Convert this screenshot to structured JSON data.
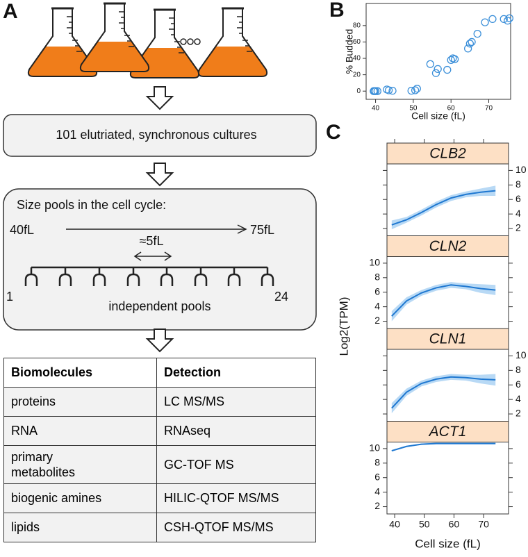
{
  "panel_a": {
    "label": "A",
    "step1": "101 elutriated, synchronous cultures",
    "pools_title": "Size pools in the cell cycle:",
    "size_start": "40fL",
    "size_end": "75fL",
    "pool_width": "≈5fL",
    "pool_first": "1",
    "pool_last": "24",
    "pools_caption": "independent pools",
    "table": {
      "header": [
        "Biomolecules",
        "Detection"
      ],
      "rows": [
        [
          "proteins",
          "LC MS/MS"
        ],
        [
          "RNA",
          "RNAseq"
        ],
        [
          "primary metabolites",
          "GC-TOF MS"
        ],
        [
          "biogenic amines",
          "HILIC-QTOF MS/MS"
        ],
        [
          "lipids",
          "CSH-QTOF MS/MS"
        ]
      ]
    }
  },
  "chart_data": [
    {
      "type": "scatter",
      "panel": "B",
      "xlabel": "Cell size (fL)",
      "ylabel": "% Budded",
      "color": "#3b8fd9",
      "x": [
        39.5,
        40,
        40.5,
        39.7,
        43,
        43.5,
        44.5,
        49.5,
        50.5,
        51,
        54.5,
        56,
        56.5,
        59,
        60,
        60.5,
        61,
        64.5,
        65,
        65.5,
        67,
        69,
        71,
        74,
        75,
        75.5
      ],
      "values": [
        0,
        0,
        0,
        0,
        2,
        1,
        0.5,
        0.5,
        1,
        3,
        33,
        22,
        27,
        26,
        38,
        40,
        39,
        52,
        58,
        60,
        70,
        84,
        88,
        88,
        86,
        89
      ],
      "xlim": [
        37.5,
        75.8
      ],
      "xticks": [
        40,
        50,
        60,
        70
      ],
      "ylim": [
        -10,
        107
      ],
      "yticks": [
        0,
        20,
        40,
        60,
        80
      ]
    },
    {
      "type": "line",
      "panel": "C",
      "xlabel": "Cell size (fL)",
      "ylabel": "Log2(TPM)",
      "color": "#1f78d1",
      "band_color": "#a6cff2",
      "x": [
        39,
        44,
        49,
        54,
        59,
        64,
        69,
        74
      ],
      "xlim": [
        37.4,
        78.4
      ],
      "xticks": [
        40,
        50,
        60,
        70
      ],
      "ylim": [
        1.0,
        10.9
      ],
      "yticks": [
        2,
        4,
        6,
        8,
        10
      ],
      "series": [
        {
          "name": "CLB2",
          "values": [
            2.5,
            3.2,
            4.2,
            5.3,
            6.2,
            6.7,
            7.0,
            7.2
          ],
          "lower": [
            1.9,
            2.8,
            3.8,
            4.9,
            5.8,
            6.3,
            6.5,
            6.5
          ],
          "upper": [
            3.1,
            3.6,
            4.6,
            5.7,
            6.6,
            7.1,
            7.5,
            7.9
          ]
        },
        {
          "name": "CLN2",
          "values": [
            2.7,
            4.8,
            5.9,
            6.6,
            7.0,
            6.8,
            6.5,
            6.3
          ],
          "lower": [
            2.0,
            4.3,
            5.5,
            6.2,
            6.6,
            6.4,
            5.9,
            5.6
          ],
          "upper": [
            3.4,
            5.3,
            6.3,
            7.0,
            7.4,
            7.2,
            7.1,
            7.0
          ]
        },
        {
          "name": "CLN1",
          "values": [
            2.8,
            5.0,
            6.2,
            6.8,
            7.1,
            7.0,
            6.8,
            6.7
          ],
          "lower": [
            2.1,
            4.5,
            5.8,
            6.4,
            6.7,
            6.6,
            6.2,
            5.9
          ],
          "upper": [
            3.5,
            5.5,
            6.6,
            7.2,
            7.5,
            7.4,
            7.4,
            7.5
          ]
        },
        {
          "name": "ACT1",
          "values": [
            9.7,
            10.3,
            10.6,
            10.7,
            10.7,
            10.7,
            10.7,
            10.7
          ],
          "lower": [
            9.6,
            10.2,
            10.5,
            10.6,
            10.6,
            10.6,
            10.6,
            10.6
          ],
          "upper": [
            9.8,
            10.4,
            10.7,
            10.8,
            10.8,
            10.8,
            10.8,
            10.8
          ]
        }
      ]
    }
  ]
}
